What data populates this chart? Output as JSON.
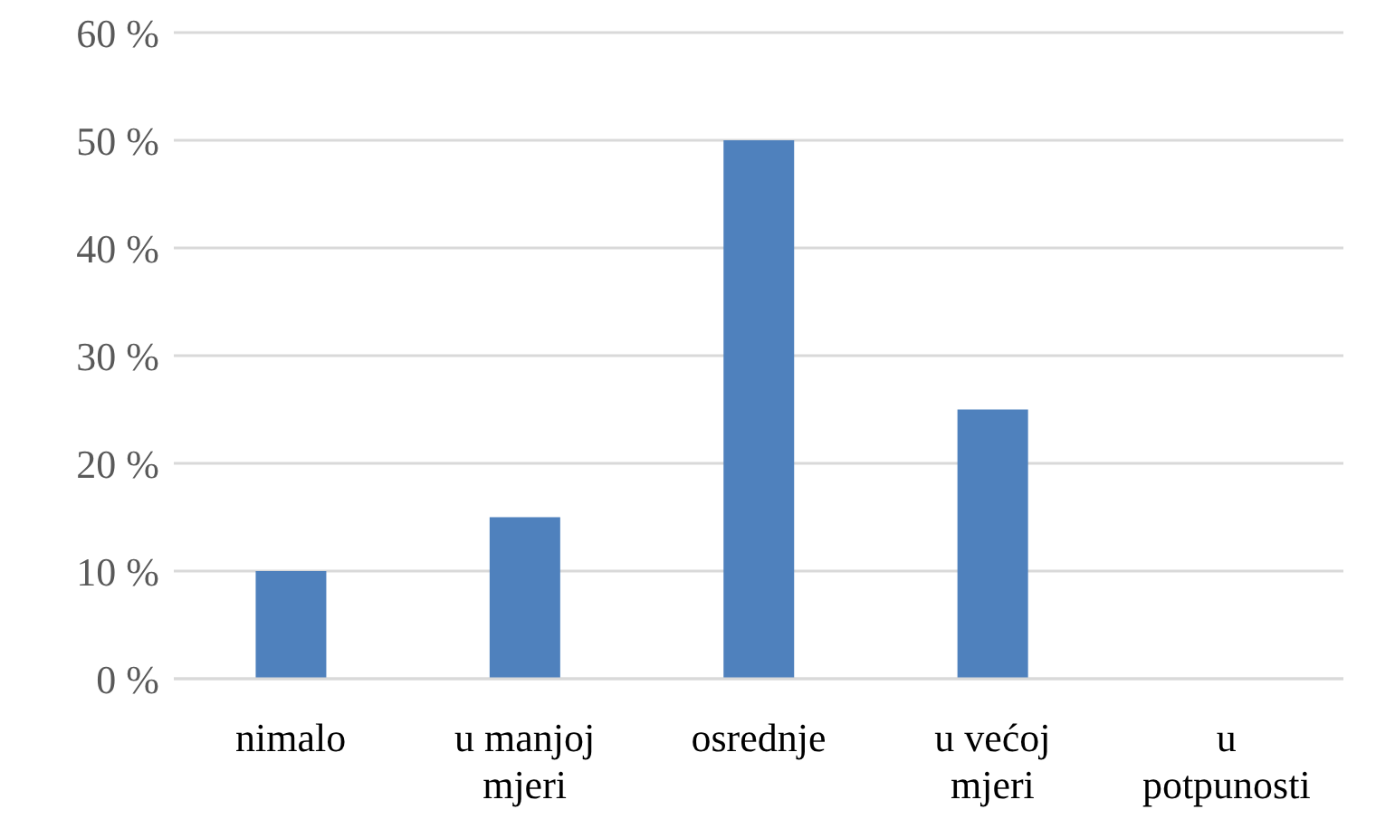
{
  "chart_data": {
    "type": "bar",
    "categories": [
      "nimalo",
      "u manjoj mjeri",
      "osrednje",
      "u većoj mjeri",
      "u potpunosti"
    ],
    "values": [
      10,
      15,
      50,
      25,
      0
    ],
    "color": "#4f81bd",
    "ylim": [
      0,
      60
    ],
    "yticks": [
      {
        "value": 0,
        "label": "0 %"
      },
      {
        "value": 10,
        "label": "10 %"
      },
      {
        "value": 20,
        "label": "20 %"
      },
      {
        "value": 30,
        "label": "30 %"
      },
      {
        "value": 40,
        "label": "40 %"
      },
      {
        "value": 50,
        "label": "50 %"
      },
      {
        "value": 60,
        "label": "60 %"
      }
    ],
    "grid": "y"
  }
}
